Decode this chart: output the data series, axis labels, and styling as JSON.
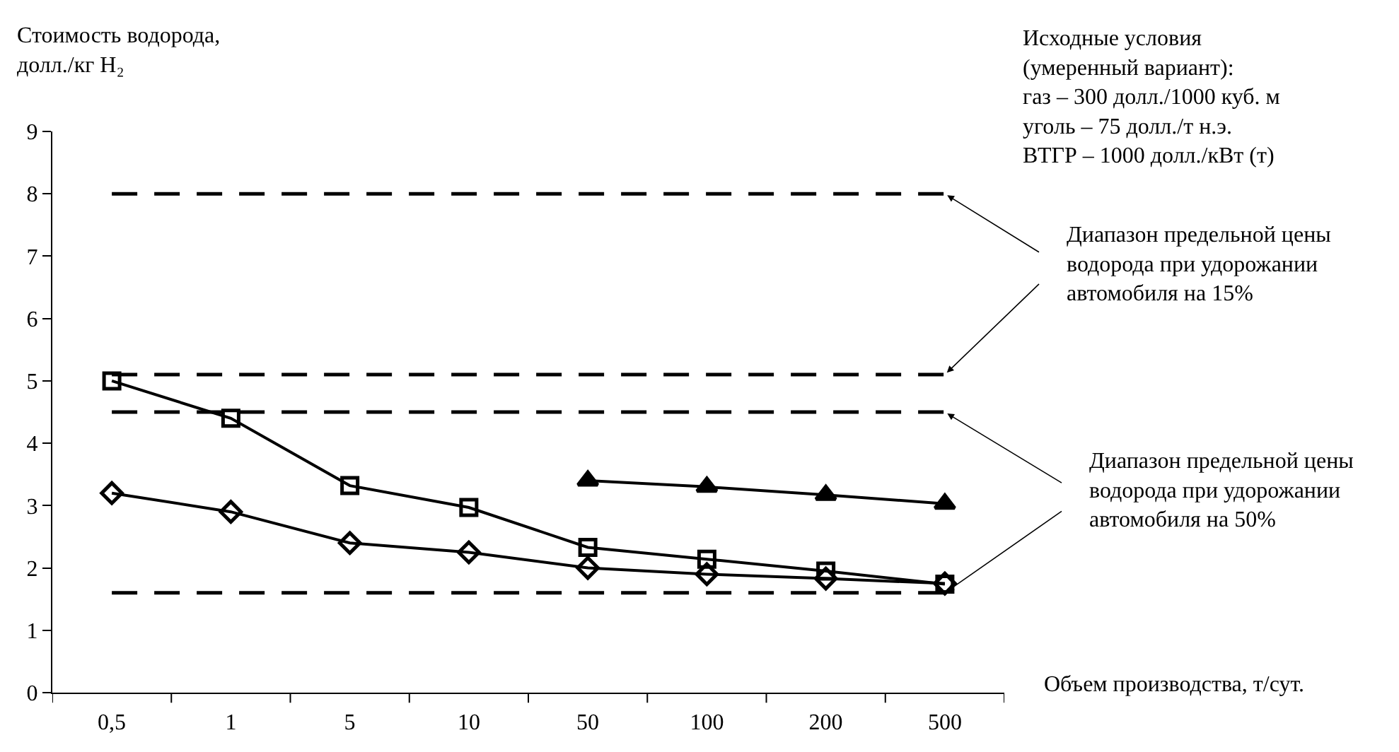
{
  "chart_data": {
    "type": "line",
    "ylabel": "Стоимость водорода,\nдолл./кг H₂",
    "xlabel": "Объем производства, т/сут.",
    "categories": [
      "0,5",
      "1",
      "5",
      "10",
      "50",
      "100",
      "200",
      "500"
    ],
    "series": [
      {
        "color": "#000000",
        "marker": "diamond",
        "values": [
          3.2,
          2.9,
          2.4,
          2.25,
          2.0,
          1.9,
          1.83,
          1.75
        ]
      },
      {
        "color": "#000000",
        "marker": "square",
        "values": [
          5.0,
          4.4,
          3.32,
          2.97,
          2.33,
          2.14,
          1.95,
          1.74
        ]
      },
      {
        "color": "#000000",
        "marker": "triangle",
        "values": [
          null,
          null,
          null,
          null,
          3.4,
          3.3,
          3.17,
          3.03
        ]
      }
    ],
    "ylim": [
      0,
      9
    ],
    "yticks": [
      0,
      1,
      2,
      3,
      4,
      5,
      6,
      7,
      8,
      9
    ],
    "ref_lines": [
      {
        "axis": "y",
        "value": 8,
        "color": "#000000",
        "line_style": "dashed"
      },
      {
        "axis": "y",
        "value": 5.1,
        "color": "#000000",
        "line_style": "dashed"
      },
      {
        "axis": "y",
        "value": 4.5,
        "color": "#000000",
        "line_style": "dashed"
      },
      {
        "axis": "y",
        "value": 1.6,
        "color": "#000000",
        "line_style": "dashed"
      }
    ],
    "annotations": [
      "Исходные условия\n(умеренный вариант):\nгаз – 300 долл./1000 куб. м\nуголь – 75 долл./т н.э.\nВТГР – 1000 долл./кВт (т)",
      "Диапазон предельной цены\nводорода при удорожании\nавтомобиля на 15%",
      "Диапазон предельной цены\nводорода при удорожании\nавтомобиля на 50%"
    ],
    "line_style": "solid"
  }
}
